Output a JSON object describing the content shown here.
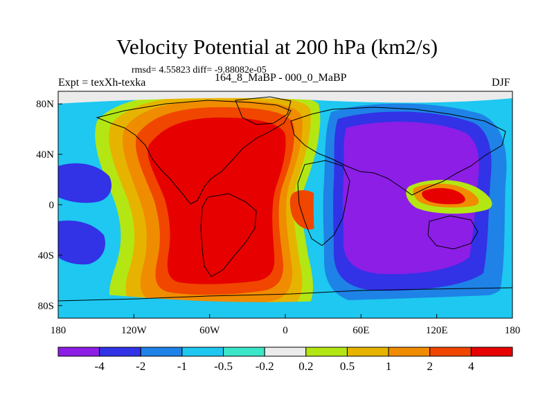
{
  "header": {
    "title": "Velocity Potential at 200 hPa (km2/s)",
    "stats": "rmsd= 4.55823 diff= -9.88082e-05",
    "experiment": "Expt = texXh-texka",
    "cases": "164_8_MaBP - 000_0_MaBP",
    "season": "DJF"
  },
  "axes": {
    "x_ticks": [
      {
        "label": "180",
        "lon": -180
      },
      {
        "label": "120W",
        "lon": -120
      },
      {
        "label": "60W",
        "lon": -60
      },
      {
        "label": "0",
        "lon": 0
      },
      {
        "label": "60E",
        "lon": 60
      },
      {
        "label": "120E",
        "lon": 120
      },
      {
        "label": "180",
        "lon": 180
      }
    ],
    "y_ticks": [
      {
        "label": "80N",
        "lat": 80
      },
      {
        "label": "40N",
        "lat": 40
      },
      {
        "label": "0",
        "lat": 0
      },
      {
        "label": "40S",
        "lat": -40
      },
      {
        "label": "80S",
        "lat": -80
      }
    ],
    "lon_range": [
      -180,
      180
    ],
    "lat_range": [
      -90,
      90
    ]
  },
  "colorbar": {
    "labels": [
      "-4",
      "-2",
      "-1",
      "-0.5",
      "-0.2",
      "0.2",
      "0.5",
      "1",
      "2",
      "4"
    ],
    "colors": [
      "#8c1ee6",
      "#3232e6",
      "#1e82e6",
      "#1ec8f0",
      "#3ce6c8",
      "#ebebeb",
      "#b4e614",
      "#e6b400",
      "#f08c00",
      "#f04600",
      "#e60000"
    ]
  }
}
